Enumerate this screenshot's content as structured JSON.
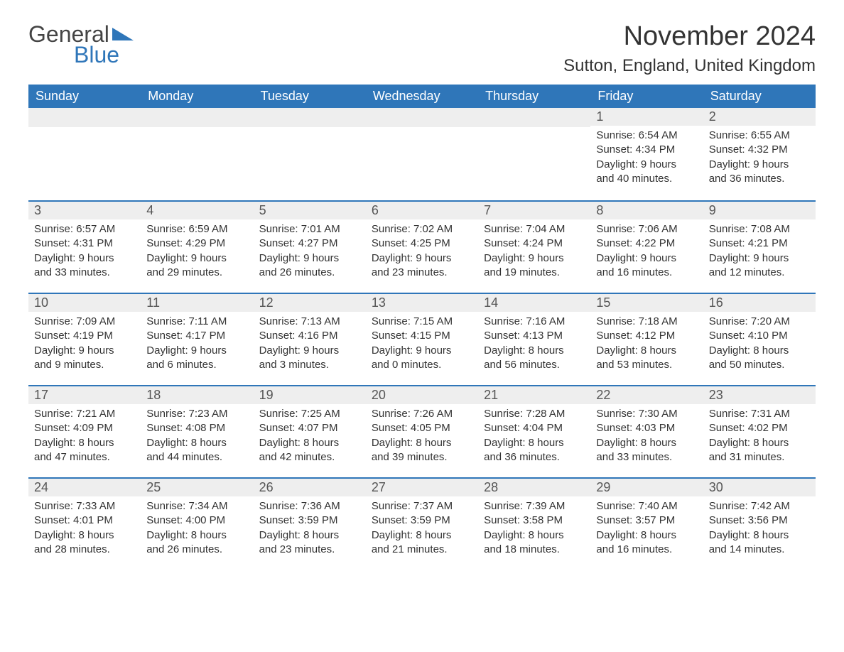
{
  "logo": {
    "text1": "General",
    "text2": "Blue",
    "triangle_color": "#2f76b9"
  },
  "title": "November 2024",
  "location": "Sutton, England, United Kingdom",
  "colors": {
    "header_bg": "#2f76b9",
    "header_text": "#ffffff",
    "daynum_bg": "#eeeeee",
    "text": "#333333",
    "rule": "#2f76b9"
  },
  "day_names": [
    "Sunday",
    "Monday",
    "Tuesday",
    "Wednesday",
    "Thursday",
    "Friday",
    "Saturday"
  ],
  "weeks": [
    [
      null,
      null,
      null,
      null,
      null,
      {
        "n": "1",
        "sunrise": "Sunrise: 6:54 AM",
        "sunset": "Sunset: 4:34 PM",
        "day1": "Daylight: 9 hours",
        "day2": "and 40 minutes."
      },
      {
        "n": "2",
        "sunrise": "Sunrise: 6:55 AM",
        "sunset": "Sunset: 4:32 PM",
        "day1": "Daylight: 9 hours",
        "day2": "and 36 minutes."
      }
    ],
    [
      {
        "n": "3",
        "sunrise": "Sunrise: 6:57 AM",
        "sunset": "Sunset: 4:31 PM",
        "day1": "Daylight: 9 hours",
        "day2": "and 33 minutes."
      },
      {
        "n": "4",
        "sunrise": "Sunrise: 6:59 AM",
        "sunset": "Sunset: 4:29 PM",
        "day1": "Daylight: 9 hours",
        "day2": "and 29 minutes."
      },
      {
        "n": "5",
        "sunrise": "Sunrise: 7:01 AM",
        "sunset": "Sunset: 4:27 PM",
        "day1": "Daylight: 9 hours",
        "day2": "and 26 minutes."
      },
      {
        "n": "6",
        "sunrise": "Sunrise: 7:02 AM",
        "sunset": "Sunset: 4:25 PM",
        "day1": "Daylight: 9 hours",
        "day2": "and 23 minutes."
      },
      {
        "n": "7",
        "sunrise": "Sunrise: 7:04 AM",
        "sunset": "Sunset: 4:24 PM",
        "day1": "Daylight: 9 hours",
        "day2": "and 19 minutes."
      },
      {
        "n": "8",
        "sunrise": "Sunrise: 7:06 AM",
        "sunset": "Sunset: 4:22 PM",
        "day1": "Daylight: 9 hours",
        "day2": "and 16 minutes."
      },
      {
        "n": "9",
        "sunrise": "Sunrise: 7:08 AM",
        "sunset": "Sunset: 4:21 PM",
        "day1": "Daylight: 9 hours",
        "day2": "and 12 minutes."
      }
    ],
    [
      {
        "n": "10",
        "sunrise": "Sunrise: 7:09 AM",
        "sunset": "Sunset: 4:19 PM",
        "day1": "Daylight: 9 hours",
        "day2": "and 9 minutes."
      },
      {
        "n": "11",
        "sunrise": "Sunrise: 7:11 AM",
        "sunset": "Sunset: 4:17 PM",
        "day1": "Daylight: 9 hours",
        "day2": "and 6 minutes."
      },
      {
        "n": "12",
        "sunrise": "Sunrise: 7:13 AM",
        "sunset": "Sunset: 4:16 PM",
        "day1": "Daylight: 9 hours",
        "day2": "and 3 minutes."
      },
      {
        "n": "13",
        "sunrise": "Sunrise: 7:15 AM",
        "sunset": "Sunset: 4:15 PM",
        "day1": "Daylight: 9 hours",
        "day2": "and 0 minutes."
      },
      {
        "n": "14",
        "sunrise": "Sunrise: 7:16 AM",
        "sunset": "Sunset: 4:13 PM",
        "day1": "Daylight: 8 hours",
        "day2": "and 56 minutes."
      },
      {
        "n": "15",
        "sunrise": "Sunrise: 7:18 AM",
        "sunset": "Sunset: 4:12 PM",
        "day1": "Daylight: 8 hours",
        "day2": "and 53 minutes."
      },
      {
        "n": "16",
        "sunrise": "Sunrise: 7:20 AM",
        "sunset": "Sunset: 4:10 PM",
        "day1": "Daylight: 8 hours",
        "day2": "and 50 minutes."
      }
    ],
    [
      {
        "n": "17",
        "sunrise": "Sunrise: 7:21 AM",
        "sunset": "Sunset: 4:09 PM",
        "day1": "Daylight: 8 hours",
        "day2": "and 47 minutes."
      },
      {
        "n": "18",
        "sunrise": "Sunrise: 7:23 AM",
        "sunset": "Sunset: 4:08 PM",
        "day1": "Daylight: 8 hours",
        "day2": "and 44 minutes."
      },
      {
        "n": "19",
        "sunrise": "Sunrise: 7:25 AM",
        "sunset": "Sunset: 4:07 PM",
        "day1": "Daylight: 8 hours",
        "day2": "and 42 minutes."
      },
      {
        "n": "20",
        "sunrise": "Sunrise: 7:26 AM",
        "sunset": "Sunset: 4:05 PM",
        "day1": "Daylight: 8 hours",
        "day2": "and 39 minutes."
      },
      {
        "n": "21",
        "sunrise": "Sunrise: 7:28 AM",
        "sunset": "Sunset: 4:04 PM",
        "day1": "Daylight: 8 hours",
        "day2": "and 36 minutes."
      },
      {
        "n": "22",
        "sunrise": "Sunrise: 7:30 AM",
        "sunset": "Sunset: 4:03 PM",
        "day1": "Daylight: 8 hours",
        "day2": "and 33 minutes."
      },
      {
        "n": "23",
        "sunrise": "Sunrise: 7:31 AM",
        "sunset": "Sunset: 4:02 PM",
        "day1": "Daylight: 8 hours",
        "day2": "and 31 minutes."
      }
    ],
    [
      {
        "n": "24",
        "sunrise": "Sunrise: 7:33 AM",
        "sunset": "Sunset: 4:01 PM",
        "day1": "Daylight: 8 hours",
        "day2": "and 28 minutes."
      },
      {
        "n": "25",
        "sunrise": "Sunrise: 7:34 AM",
        "sunset": "Sunset: 4:00 PM",
        "day1": "Daylight: 8 hours",
        "day2": "and 26 minutes."
      },
      {
        "n": "26",
        "sunrise": "Sunrise: 7:36 AM",
        "sunset": "Sunset: 3:59 PM",
        "day1": "Daylight: 8 hours",
        "day2": "and 23 minutes."
      },
      {
        "n": "27",
        "sunrise": "Sunrise: 7:37 AM",
        "sunset": "Sunset: 3:59 PM",
        "day1": "Daylight: 8 hours",
        "day2": "and 21 minutes."
      },
      {
        "n": "28",
        "sunrise": "Sunrise: 7:39 AM",
        "sunset": "Sunset: 3:58 PM",
        "day1": "Daylight: 8 hours",
        "day2": "and 18 minutes."
      },
      {
        "n": "29",
        "sunrise": "Sunrise: 7:40 AM",
        "sunset": "Sunset: 3:57 PM",
        "day1": "Daylight: 8 hours",
        "day2": "and 16 minutes."
      },
      {
        "n": "30",
        "sunrise": "Sunrise: 7:42 AM",
        "sunset": "Sunset: 3:56 PM",
        "day1": "Daylight: 8 hours",
        "day2": "and 14 minutes."
      }
    ]
  ]
}
